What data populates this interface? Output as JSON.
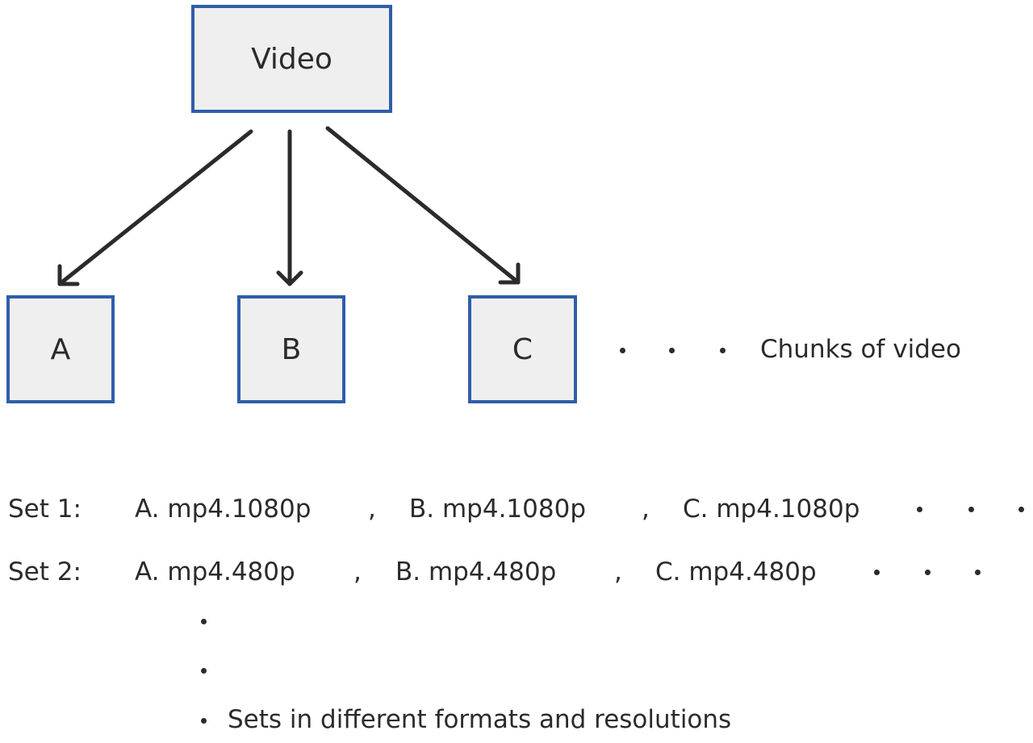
{
  "diagram": {
    "root": "Video",
    "chunks": [
      "A",
      "B",
      "C"
    ],
    "chunks_caption": "Chunks of video"
  },
  "sets": [
    {
      "label": "Set 1:",
      "items": [
        "A. mp4.1080p",
        "B. mp4.1080p",
        "C. mp4.1080p"
      ]
    },
    {
      "label": "Set 2:",
      "items": [
        "A. mp4.480p",
        "B. mp4.480p",
        "C. mp4.480p"
      ]
    }
  ],
  "separator": ",",
  "sets_caption": "Sets in different formats and resolutions",
  "colors": {
    "box_border": "#2f5ea9",
    "box_fill": "#efefef",
    "text": "#2b2b2b",
    "arrow": "#2b2b2b"
  }
}
